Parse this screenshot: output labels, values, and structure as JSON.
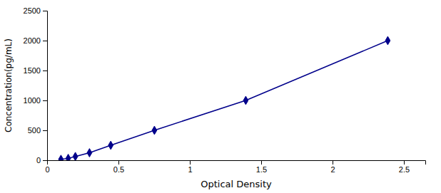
{
  "chart_data": {
    "type": "line",
    "x": [
      0.097,
      0.148,
      0.198,
      0.297,
      0.446,
      0.752,
      1.392,
      2.387
    ],
    "values": [
      15.6,
      31.25,
      62.5,
      125,
      250,
      500,
      1000,
      2000
    ],
    "color": "#00008B",
    "marker": "diamond",
    "xlabel": "Optical Density",
    "ylabel": "Concentration(pg/mL)",
    "xlim": [
      0.0,
      2.65
    ],
    "ylim": [
      0,
      2500
    ],
    "xticks": [
      0,
      0.5,
      1,
      1.5,
      2,
      2.5
    ],
    "yticks": [
      0,
      500,
      1000,
      1500,
      2000,
      2500
    ],
    "grid": false
  }
}
